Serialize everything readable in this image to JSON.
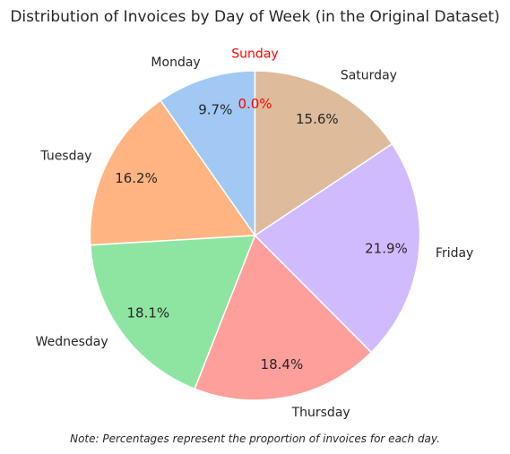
{
  "chart_data": {
    "type": "pie",
    "title": "Distribution of Invoices by Day of Week (in the Original Dataset)",
    "categories": [
      "Monday",
      "Tuesday",
      "Wednesday",
      "Thursday",
      "Friday",
      "Saturday",
      "Sunday"
    ],
    "values": [
      9.7,
      16.2,
      18.1,
      18.4,
      21.9,
      15.6,
      0.0
    ],
    "value_labels": [
      "9.7%",
      "16.2%",
      "18.1%",
      "18.4%",
      "21.9%",
      "15.6%",
      "0.0%"
    ],
    "colors": [
      "#a1c9f4",
      "#ffb482",
      "#8de5a1",
      "#ff9f9b",
      "#d0bbff",
      "#debb9b",
      "#fab0e4"
    ],
    "highlight_category": "Sunday",
    "highlight_color": "#ff0000",
    "start_angle_deg": 90,
    "direction": "counterclockwise",
    "note": "Note: Percentages represent the proportion of invoices for each day."
  }
}
